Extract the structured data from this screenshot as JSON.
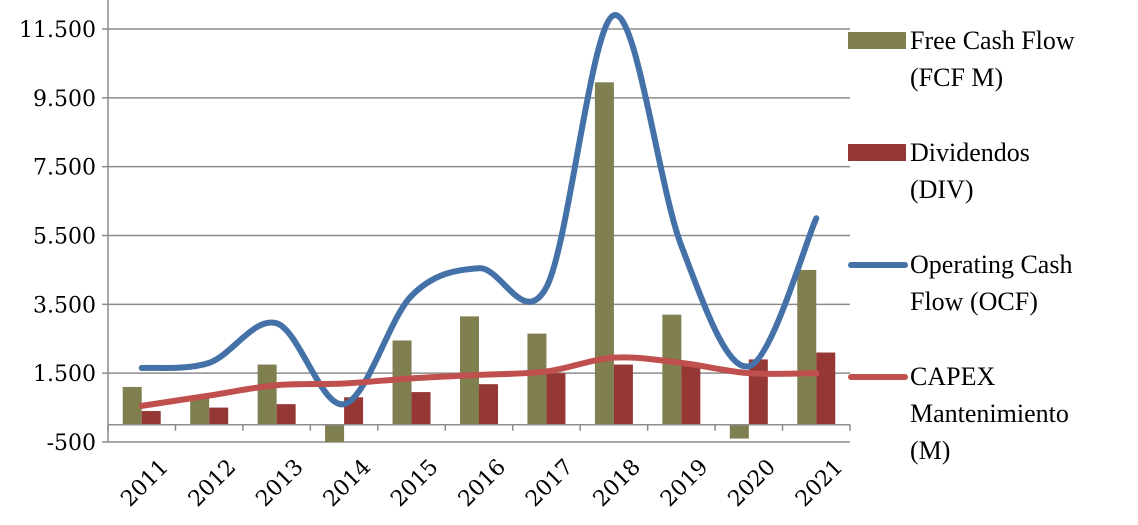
{
  "chart_data": {
    "type": "bar",
    "categories": [
      "2011",
      "2012",
      "2013",
      "2014",
      "2015",
      "2016",
      "2017",
      "2018",
      "2019",
      "2020",
      "2021"
    ],
    "series": [
      {
        "name": "Free Cash Flow (FCF M)",
        "type": "bar",
        "color": "#7f7f4f",
        "values": [
          1100,
          850,
          1750,
          -500,
          2450,
          3150,
          2650,
          9950,
          3200,
          -400,
          4500
        ]
      },
      {
        "name": "Dividendos (DIV)",
        "type": "bar",
        "color": "#953735",
        "values": [
          400,
          500,
          600,
          800,
          950,
          1180,
          1500,
          1750,
          1800,
          1900,
          2100
        ]
      },
      {
        "name": "Operating Cash Flow (OCF)",
        "type": "line",
        "color": "#4472a8",
        "values": [
          1650,
          1800,
          2950,
          600,
          3750,
          4550,
          4000,
          11900,
          5200,
          1700,
          6000
        ]
      },
      {
        "name": "CAPEX Mantenimiento (M)",
        "type": "line",
        "color": "#c0504d",
        "values": [
          550,
          850,
          1150,
          1200,
          1350,
          1450,
          1550,
          1950,
          1800,
          1500,
          1500
        ]
      }
    ],
    "yticks": [
      "-500",
      "1.500",
      "3.500",
      "5.500",
      "7.500",
      "9.500",
      "11.500"
    ],
    "ytick_values": [
      -500,
      1500,
      3500,
      5500,
      7500,
      9500,
      11500
    ],
    "ylim": [
      -500,
      12500
    ],
    "grid": true,
    "legend": "right"
  },
  "legend": [
    {
      "line1": "Free Cash Flow",
      "line2": "(FCF M)",
      "line3": ""
    },
    {
      "line1": "Dividendos",
      "line2": "(DIV)",
      "line3": ""
    },
    {
      "line1": "Operating Cash",
      "line2": "Flow (OCF)",
      "line3": ""
    },
    {
      "line1": "CAPEX",
      "line2": "Mantenimiento",
      "line3": "(M)"
    }
  ]
}
